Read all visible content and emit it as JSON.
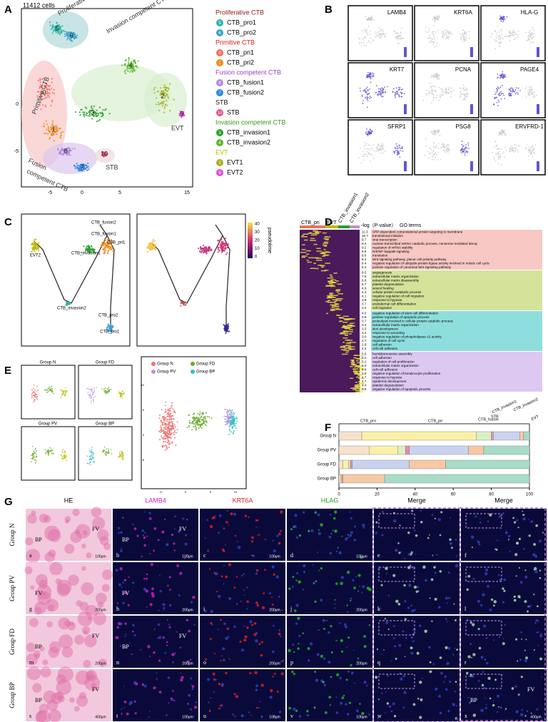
{
  "panel_letters": [
    "A",
    "B",
    "C",
    "D",
    "E",
    "F",
    "G"
  ],
  "panel_a": {
    "cell_count": "11412 cells",
    "regions": [
      "Proliferative CTB",
      "Invasion competent CTB",
      "Primitive CTB",
      "Fusion",
      "competent CTB",
      "EVT",
      "STB"
    ],
    "clusters": [
      "5",
      "6",
      "4",
      "3",
      "0",
      "1",
      "8",
      "7",
      "2",
      "9",
      "10"
    ],
    "xticks": [
      "-5",
      "0",
      "5",
      "15"
    ],
    "yticks": [
      "0",
      "-5"
    ],
    "legend": [
      {
        "group": "Proliferative CTB",
        "color": "#8b1a1a",
        "items": [
          {
            "id": "5",
            "name": "CTB_pro1",
            "color": "#2bb5a5"
          },
          {
            "id": "6",
            "name": "CTB_pro2",
            "color": "#3aa0c8"
          }
        ]
      },
      {
        "group": "Primitive CTB",
        "color": "#e41a1c",
        "items": [
          {
            "id": "0",
            "name": "CTB_pri1",
            "color": "#f07060"
          },
          {
            "id": "1",
            "name": "CTB_pri2",
            "color": "#f08a1a"
          }
        ]
      },
      {
        "group": "Fusion competent CTB",
        "color": "#9b3dca",
        "items": [
          {
            "id": "8",
            "name": "CTB_fusion1",
            "color": "#b08ad8"
          },
          {
            "id": "7",
            "name": "CTB_fusion2",
            "color": "#2a8ad8"
          }
        ]
      },
      {
        "group": "STB",
        "color": "#111111",
        "items": [
          {
            "id": "10",
            "name": "STB",
            "color": "#e0507a"
          }
        ]
      },
      {
        "group": "Invasion competent CTB",
        "color": "#3a9a1a",
        "items": [
          {
            "id": "3",
            "name": "CTB_invasion1",
            "color": "#2aa02a"
          },
          {
            "id": "4",
            "name": "CTB_invasion2",
            "color": "#5ab82a"
          }
        ]
      },
      {
        "group": "EVT",
        "color": "#b8c000",
        "items": [
          {
            "id": "2",
            "name": "EVT1",
            "color": "#a8b020"
          },
          {
            "id": "9",
            "name": "EVT2",
            "color": "#e050d0"
          }
        ]
      }
    ]
  },
  "panel_b": {
    "genes": [
      "LAMB4",
      "KRT6A",
      "HLA-G",
      "KRT7",
      "PCNA",
      "PAGE4",
      "SFRP1",
      "PSG8",
      "ERVFRD-1"
    ]
  },
  "panel_c": {
    "labels": [
      "CTB_fusion2",
      "CTB_fusion1",
      "EVT2",
      "CTB_pri1",
      "CTB_invasion1",
      "CTB_invasion2",
      "CTB_pro2",
      "CTB_pro1"
    ],
    "colorbar_title": "pseudotime",
    "colorbar_ticks": [
      "40",
      "30",
      "20",
      "10",
      "0"
    ]
  },
  "panel_d": {
    "columns": [
      "CTB_pri",
      "EVT",
      "CTB_invasion1",
      "CTB_invasion2"
    ],
    "pvalue_header": "-log（P-value）",
    "terms_header": "GO terms",
    "groups": [
      {
        "color": "#f8c8c4",
        "terms": [
          [
            "11.3",
            "SRP-dependent cotranslational protein targeting to membrane"
          ],
          [
            "10.7",
            "translational initiation"
          ],
          [
            "9.7",
            "viral transcription"
          ],
          [
            "9.4",
            "nuclear-transcribed mRNA catabolic process, nonsense-mediated decay"
          ],
          [
            "9.2",
            "regulation of mRNA stability"
          ],
          [
            "8.8",
            "NIK/NF-kappaB signaling"
          ],
          [
            "8.6",
            "translation"
          ],
          [
            "8.4",
            "Wnt signaling pathway, planar cell polarity pathway"
          ],
          [
            "8.4",
            "negative regulation of ubiquitin-protein ligase activity involved in mitotic cell cycle"
          ],
          [
            "8.3",
            "positive regulation of canonical Wnt signaling pathway"
          ]
        ]
      },
      {
        "color": "#d4e29a",
        "terms": [
          [
            "8.5",
            "angiogenesis"
          ],
          [
            "7.5",
            "extracellular matrix organization"
          ],
          [
            "6.8",
            "extracellular matrix disassembly"
          ],
          [
            "6.7",
            "platelet degranulation"
          ],
          [
            "4.6",
            "wound healing"
          ],
          [
            "4.3",
            "cellular protein metabolic process"
          ],
          [
            "4.1",
            "negative regulation of cell migration"
          ],
          [
            "3.9",
            "response to hypoxia"
          ],
          [
            "3.7",
            "endodermal cell differentiation"
          ],
          [
            "3.4",
            "cell migration"
          ]
        ]
      },
      {
        "color": "#8fdede",
        "terms": [
          [
            "4.0",
            "negative regulation of stem cell differentiation"
          ],
          [
            "3.8",
            "positive regulation of apoptotic process"
          ],
          [
            "3.7",
            "proteolysis involved in cellular protein catabolic process"
          ],
          [
            "3.4",
            "extracellular matrix organization"
          ],
          [
            "3.3",
            "skin development"
          ],
          [
            "3.2",
            "response to wounding"
          ],
          [
            "3.0",
            "negative regulation of phospholipase A2 activity"
          ],
          [
            "2.7",
            "regulation of cell cycle"
          ],
          [
            "2.6",
            "cell adhesion"
          ],
          [
            "2.4",
            "cell-cell adhesion"
          ]
        ]
      },
      {
        "color": "#dcc8f0",
        "terms": [
          [
            "5.5",
            "hemidesmosome assembly"
          ],
          [
            "5.2",
            "cell adhesion"
          ],
          [
            "5.2",
            "regulation of cell proliferation"
          ],
          [
            "5.0",
            "extracellular matrix organization"
          ],
          [
            "4.8",
            "cell-cell adhesion"
          ],
          [
            "4.8",
            "negative regulation of keratinocyte proliferation"
          ],
          [
            "4.7",
            "response to hypoxia"
          ],
          [
            "4.7",
            "epidermis development"
          ],
          [
            "4.4",
            "platelet degranulation"
          ],
          [
            "3.8",
            "negative regulation of apoptotic process"
          ]
        ]
      }
    ]
  },
  "panel_e": {
    "small_titles": [
      "Group N",
      "Group FD",
      "Group PV",
      "Group BP"
    ],
    "legend": [
      {
        "name": "Group N",
        "color": "#f07070"
      },
      {
        "name": "Group FD",
        "color": "#6aaa2a"
      },
      {
        "name": "Group PV",
        "color": "#c090e0"
      },
      {
        "name": "Group BP",
        "color": "#30c0c8"
      }
    ],
    "xticks": [
      "-5",
      "0",
      "5",
      "10"
    ],
    "yticks": [
      "10",
      "5",
      "0",
      "-5"
    ]
  },
  "panel_f": {
    "type": "bar",
    "groups": [
      "Group N",
      "Group PV",
      "Group FD",
      "Group BP"
    ],
    "xlim": [
      0,
      100
    ],
    "xticks": [
      0,
      20,
      40,
      60,
      80,
      100
    ],
    "series": [
      {
        "name": "CTB_pro",
        "color": "#f6e2cc",
        "values": [
          12,
          16,
          2,
          1
        ]
      },
      {
        "name": "CTB_pri",
        "color": "#fbf0a8",
        "values": [
          60,
          15,
          3,
          0.5
        ]
      },
      {
        "name": "CTB_fusion",
        "color": "#d9f0c4",
        "values": [
          8,
          4,
          1,
          0
        ]
      },
      {
        "name": "STB",
        "color": "#e88ab0",
        "values": [
          1,
          2,
          1,
          0.5
        ]
      },
      {
        "name": "CTB_invasion1",
        "color": "#c9d3ef",
        "values": [
          14,
          31,
          30,
          0
        ]
      },
      {
        "name": "CTB_invasion2",
        "color": "#f8c8a4",
        "values": [
          2,
          8,
          19,
          22
        ]
      },
      {
        "name": "EVT",
        "color": "#a8dcc8",
        "values": [
          3,
          24,
          44,
          76
        ]
      }
    ]
  },
  "panel_g": {
    "headers": [
      {
        "text": "HE",
        "color": "#000000"
      },
      {
        "text": "LAMB4",
        "color": "#d020c0"
      },
      {
        "text": "KRT6A",
        "color": "#e02020"
      },
      {
        "text": "HLAG",
        "color": "#20a020"
      },
      {
        "text": "Merge",
        "color": "#000000"
      },
      {
        "text": "Merge",
        "color": "#000000"
      }
    ],
    "rows": [
      "Group N",
      "Group PV",
      "Group FD",
      "Group BP"
    ],
    "tiles": [
      {
        "letter": "a",
        "scale": "100μm",
        "marks": [
          "BP",
          "FV"
        ]
      },
      {
        "letter": "b",
        "scale": "100μm",
        "marks": [
          "BP",
          "FV"
        ]
      },
      {
        "letter": "c",
        "scale": "100μm"
      },
      {
        "letter": "d",
        "scale": "100μm"
      },
      {
        "letter": "e"
      },
      {
        "letter": "f"
      },
      {
        "letter": "g",
        "scale": "200μm",
        "marks": [
          "FV"
        ]
      },
      {
        "letter": "h",
        "scale": "200μm",
        "marks": [
          "FV"
        ]
      },
      {
        "letter": "i",
        "scale": "200μm"
      },
      {
        "letter": "j",
        "scale": "200μm"
      },
      {
        "letter": "k"
      },
      {
        "letter": "l"
      },
      {
        "letter": "m",
        "scale": "200μm",
        "marks": [
          "BP",
          "FV"
        ]
      },
      {
        "letter": "n",
        "scale": "200μm",
        "marks": [
          "BP",
          "FV"
        ]
      },
      {
        "letter": "o",
        "scale": "200μm"
      },
      {
        "letter": "p",
        "scale": "200μm"
      },
      {
        "letter": "q"
      },
      {
        "letter": "r"
      },
      {
        "letter": "s",
        "scale": "400μm",
        "marks": [
          "BP",
          "FV"
        ]
      },
      {
        "letter": "t",
        "scale": "100μm"
      },
      {
        "letter": "u",
        "scale": "100μm"
      },
      {
        "letter": "v",
        "scale": "100μm"
      },
      {
        "letter": "w"
      },
      {
        "letter": "x",
        "scale": "400μm",
        "marks": [
          "BP",
          "FV"
        ]
      }
    ]
  }
}
